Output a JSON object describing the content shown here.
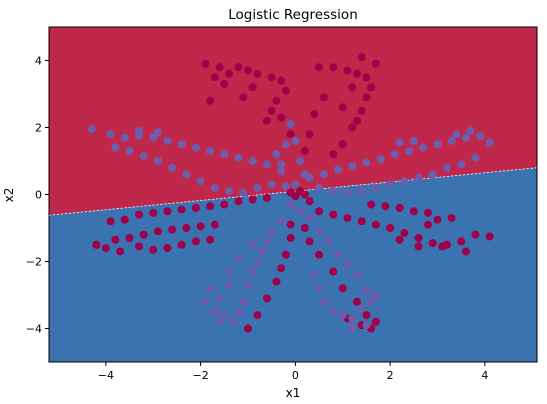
{
  "chart_data": {
    "type": "scatter",
    "title": "Logistic Regression",
    "xlabel": "x1",
    "ylabel": "x2",
    "xlim": [
      -5.2,
      5.1
    ],
    "ylim": [
      -5.0,
      5.0
    ],
    "xticks": [
      -4,
      -2,
      0,
      2,
      4
    ],
    "yticks": [
      -4,
      -2,
      0,
      2,
      4
    ],
    "grid": false,
    "decision_boundary": {
      "line": [
        [
          -5.2,
          -0.62
        ],
        [
          5.1,
          0.8
        ]
      ],
      "region_above_color": "#c0284b",
      "region_below_color": "#3b72b0"
    },
    "series": [
      {
        "class": 0,
        "color": "#9f0047",
        "points": [
          [
            -4.2,
            -1.5
          ],
          [
            -3.8,
            -1.35
          ],
          [
            -3.5,
            -1.3
          ],
          [
            -3.2,
            -1.2
          ],
          [
            -2.9,
            -1.1
          ],
          [
            -2.6,
            -1.05
          ],
          [
            -2.3,
            -1.0
          ],
          [
            -2.0,
            -0.95
          ],
          [
            -1.7,
            -0.9
          ],
          [
            -4.0,
            -1.6
          ],
          [
            -3.7,
            -1.7
          ],
          [
            -3.3,
            -1.55
          ],
          [
            -3.0,
            -1.65
          ],
          [
            -2.7,
            -1.6
          ],
          [
            -2.4,
            -1.5
          ],
          [
            -2.1,
            -1.4
          ],
          [
            -1.8,
            -1.35
          ],
          [
            -3.9,
            -0.8
          ],
          [
            -3.6,
            -0.75
          ],
          [
            -3.3,
            -0.6
          ],
          [
            -3.0,
            -0.55
          ],
          [
            -2.7,
            -0.5
          ],
          [
            -2.4,
            -0.45
          ],
          [
            -2.1,
            -0.4
          ],
          [
            -1.8,
            -0.35
          ],
          [
            -1.5,
            -0.3
          ],
          [
            -1.2,
            -0.2
          ],
          [
            -0.9,
            -0.15
          ],
          [
            -0.6,
            -0.1
          ],
          [
            -1.9,
            3.9
          ],
          [
            -1.6,
            3.8
          ],
          [
            -1.4,
            3.6
          ],
          [
            -1.7,
            3.5
          ],
          [
            -1.5,
            3.3
          ],
          [
            -1.2,
            3.8
          ],
          [
            -1.0,
            3.7
          ],
          [
            -0.8,
            3.6
          ],
          [
            -0.5,
            3.5
          ],
          [
            -0.3,
            3.4
          ],
          [
            -0.2,
            3.1
          ],
          [
            -0.4,
            2.8
          ],
          [
            -0.3,
            2.3
          ],
          [
            -0.5,
            2.5
          ],
          [
            -0.6,
            2.2
          ],
          [
            -1.1,
            2.9
          ],
          [
            -0.9,
            3.2
          ],
          [
            -1.8,
            2.8
          ],
          [
            -0.1,
            1.8
          ],
          [
            0.5,
            3.8
          ],
          [
            0.8,
            3.8
          ],
          [
            1.1,
            3.7
          ],
          [
            1.3,
            3.6
          ],
          [
            1.5,
            3.5
          ],
          [
            1.6,
            3.2
          ],
          [
            1.5,
            2.9
          ],
          [
            1.4,
            2.5
          ],
          [
            1.3,
            2.2
          ],
          [
            1.2,
            2.0
          ],
          [
            1.0,
            1.5
          ],
          [
            0.8,
            1.2
          ],
          [
            1.7,
            3.9
          ],
          [
            1.2,
            3.2
          ],
          [
            1.0,
            2.6
          ],
          [
            0.6,
            2.9
          ],
          [
            0.4,
            2.4
          ],
          [
            0.3,
            1.8
          ],
          [
            0.2,
            1.3
          ],
          [
            1.4,
            4.1
          ],
          [
            0.5,
            -0.5
          ],
          [
            0.8,
            -0.6
          ],
          [
            1.1,
            -0.7
          ],
          [
            1.4,
            -0.8
          ],
          [
            1.7,
            -0.9
          ],
          [
            2.0,
            -1.0
          ],
          [
            2.3,
            -1.15
          ],
          [
            2.6,
            -1.3
          ],
          [
            2.9,
            -1.45
          ],
          [
            3.2,
            -1.5
          ],
          [
            3.5,
            -1.4
          ],
          [
            3.8,
            -1.2
          ],
          [
            4.1,
            -1.25
          ],
          [
            3.6,
            -1.7
          ],
          [
            3.1,
            -1.55
          ],
          [
            2.6,
            -1.55
          ],
          [
            2.2,
            -1.35
          ],
          [
            3.0,
            -0.75
          ],
          [
            3.3,
            -0.7
          ],
          [
            2.8,
            -0.9
          ],
          [
            1.6,
            -0.3
          ],
          [
            1.9,
            -0.35
          ],
          [
            2.2,
            -0.4
          ],
          [
            2.5,
            -0.5
          ],
          [
            2.8,
            -0.55
          ],
          [
            0.3,
            -0.2
          ],
          [
            0.1,
            0.1
          ],
          [
            -0.1,
            0.05
          ],
          [
            0.0,
            -0.05
          ],
          [
            0.2,
            0.0
          ],
          [
            -1.0,
            -4.0
          ],
          [
            -0.8,
            -3.6
          ],
          [
            -0.6,
            -3.1
          ],
          [
            -0.4,
            -2.6
          ],
          [
            -0.3,
            -2.2
          ],
          [
            -0.2,
            -1.8
          ],
          [
            -0.1,
            -1.3
          ],
          [
            -0.1,
            -0.9
          ],
          [
            1.6,
            -4.0
          ],
          [
            1.5,
            -3.6
          ],
          [
            1.3,
            -3.2
          ],
          [
            1.0,
            -2.8
          ],
          [
            0.8,
            -2.3
          ],
          [
            0.5,
            -1.8
          ],
          [
            0.3,
            -1.4
          ],
          [
            0.2,
            -1.0
          ],
          [
            1.7,
            -3.8
          ],
          [
            1.4,
            -3.9
          ],
          [
            1.1,
            -3.7
          ]
        ]
      },
      {
        "class": 1,
        "color": "#6c5ead",
        "points": [
          [
            -4.3,
            1.95
          ],
          [
            -3.9,
            1.8
          ],
          [
            -3.6,
            1.7
          ],
          [
            -3.3,
            1.75
          ],
          [
            -3.0,
            1.7
          ],
          [
            -2.7,
            1.6
          ],
          [
            -2.4,
            1.5
          ],
          [
            -2.1,
            1.4
          ],
          [
            -1.8,
            1.3
          ],
          [
            -1.5,
            1.2
          ],
          [
            -1.2,
            1.1
          ],
          [
            -0.9,
            1.0
          ],
          [
            -0.6,
            0.9
          ],
          [
            -0.3,
            0.7
          ],
          [
            -3.8,
            1.4
          ],
          [
            -3.5,
            1.3
          ],
          [
            -3.2,
            1.15
          ],
          [
            -2.9,
            1.0
          ],
          [
            -2.6,
            0.8
          ],
          [
            -2.3,
            0.6
          ],
          [
            -2.0,
            0.4
          ],
          [
            -1.7,
            0.2
          ],
          [
            -1.4,
            0.1
          ],
          [
            -1.1,
            0.05
          ],
          [
            -0.8,
            0.2
          ],
          [
            -0.5,
            0.3
          ],
          [
            -0.2,
            0.25
          ],
          [
            -3.3,
            1.9
          ],
          [
            -2.9,
            1.85
          ],
          [
            0.3,
            0.5
          ],
          [
            0.6,
            0.6
          ],
          [
            0.9,
            0.75
          ],
          [
            1.2,
            0.85
          ],
          [
            1.5,
            0.95
          ],
          [
            1.8,
            1.05
          ],
          [
            2.1,
            1.2
          ],
          [
            2.4,
            1.3
          ],
          [
            2.7,
            1.4
          ],
          [
            3.0,
            1.5
          ],
          [
            3.3,
            1.6
          ],
          [
            3.6,
            1.7
          ],
          [
            3.9,
            1.75
          ],
          [
            4.1,
            1.55
          ],
          [
            3.7,
            1.9
          ],
          [
            3.4,
            1.8
          ],
          [
            3.8,
            1.1
          ],
          [
            3.5,
            0.9
          ],
          [
            3.2,
            0.8
          ],
          [
            2.9,
            0.6
          ],
          [
            2.6,
            0.5
          ],
          [
            2.3,
            0.4
          ],
          [
            2.0,
            0.3
          ],
          [
            1.7,
            0.2
          ],
          [
            1.4,
            0.1
          ],
          [
            1.1,
            0.05
          ],
          [
            0.8,
            0.1
          ],
          [
            0.5,
            0.2
          ],
          [
            2.5,
            1.6
          ],
          [
            2.2,
            1.55
          ],
          [
            -1.9,
            -3.2
          ],
          [
            -1.8,
            -2.8
          ],
          [
            -1.7,
            -3.5
          ],
          [
            -1.6,
            -3.8
          ],
          [
            -1.5,
            -3.6
          ],
          [
            -1.3,
            -3.8
          ],
          [
            -1.2,
            -3.5
          ],
          [
            -1.1,
            -3.2
          ],
          [
            -1.0,
            -2.7
          ],
          [
            -0.9,
            -2.3
          ],
          [
            -0.8,
            -2.0
          ],
          [
            -0.7,
            -1.7
          ],
          [
            -0.6,
            -1.4
          ],
          [
            -1.4,
            -2.3
          ],
          [
            -1.2,
            -1.9
          ],
          [
            -0.9,
            -1.5
          ],
          [
            -0.5,
            -1.1
          ],
          [
            -0.3,
            -0.8
          ],
          [
            -1.6,
            -3.1
          ],
          [
            -1.4,
            -2.7
          ],
          [
            0.4,
            -2.4
          ],
          [
            0.5,
            -2.8
          ],
          [
            0.6,
            -3.2
          ],
          [
            0.8,
            -3.5
          ],
          [
            1.0,
            -3.6
          ],
          [
            1.2,
            -3.7
          ],
          [
            1.4,
            -3.4
          ],
          [
            1.6,
            -3.2
          ],
          [
            1.7,
            -3.0
          ],
          [
            1.5,
            -2.9
          ],
          [
            1.3,
            -2.4
          ],
          [
            1.1,
            -2.1
          ],
          [
            0.9,
            -1.8
          ],
          [
            0.7,
            -1.4
          ],
          [
            0.5,
            -1.1
          ],
          [
            0.3,
            -0.7
          ],
          [
            1.5,
            -3.9
          ],
          [
            1.2,
            -4.0
          ],
          [
            -0.4,
            1.2
          ],
          [
            -0.2,
            1.5
          ],
          [
            -0.1,
            2.1
          ],
          [
            0.0,
            1.6
          ],
          [
            0.1,
            1.0
          ],
          [
            -0.3,
            0.9
          ],
          [
            0.2,
            0.6
          ],
          [
            0.0,
            0.3
          ],
          [
            -0.1,
            -0.3
          ],
          [
            0.1,
            -0.5
          ]
        ]
      }
    ]
  }
}
